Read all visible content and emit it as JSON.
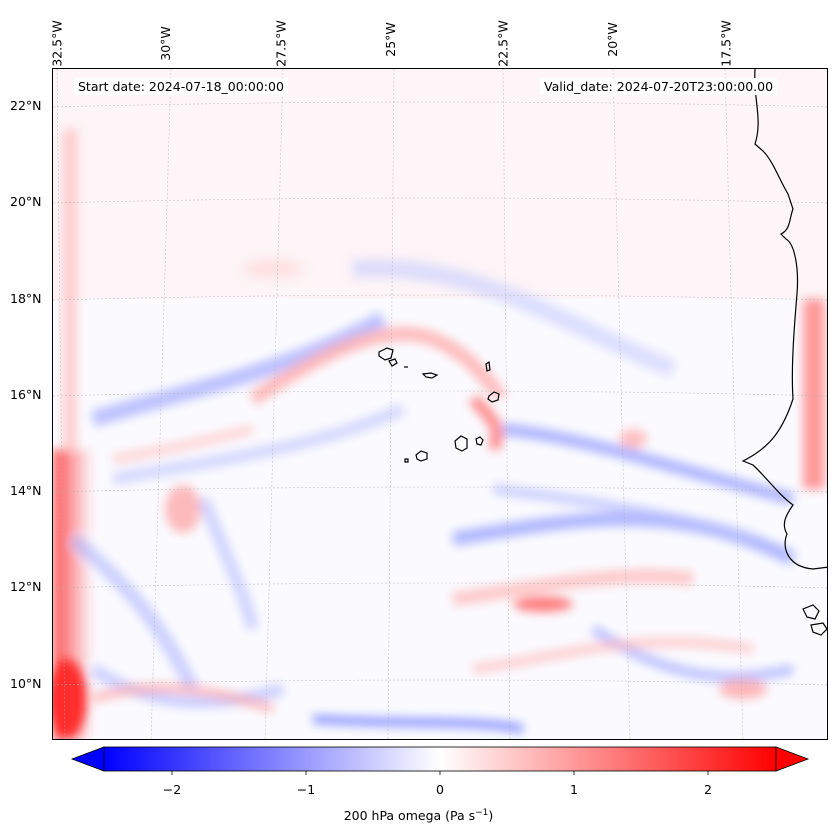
{
  "map": {
    "start_label": "Start date: 2024-07-18_00:00:00",
    "valid_label": "Valid_date: 2024-07-20T23:00:00.00",
    "longitude_labels": [
      "32.5°W",
      "30°W",
      "27.5°W",
      "25°W",
      "22.5°W",
      "20°W",
      "17.5°W"
    ],
    "latitude_labels": [
      "22°N",
      "20°N",
      "18°N",
      "16°N",
      "14°N",
      "12°N",
      "10°N"
    ],
    "features": [
      "Cape Verde islands",
      "West African coastline"
    ]
  },
  "colorbar": {
    "label": "200 hPa omega (Pa s",
    "label_sup": "−1",
    "label_close": ")",
    "tick_labels": [
      "−2",
      "−1",
      "0",
      "1",
      "2"
    ],
    "range": [
      -2.75,
      2.75
    ],
    "colormap": "bwr",
    "colors": {
      "negative": "#0000ff",
      "zero": "#ffffff",
      "positive": "#ff0000"
    },
    "extend": "both"
  }
}
